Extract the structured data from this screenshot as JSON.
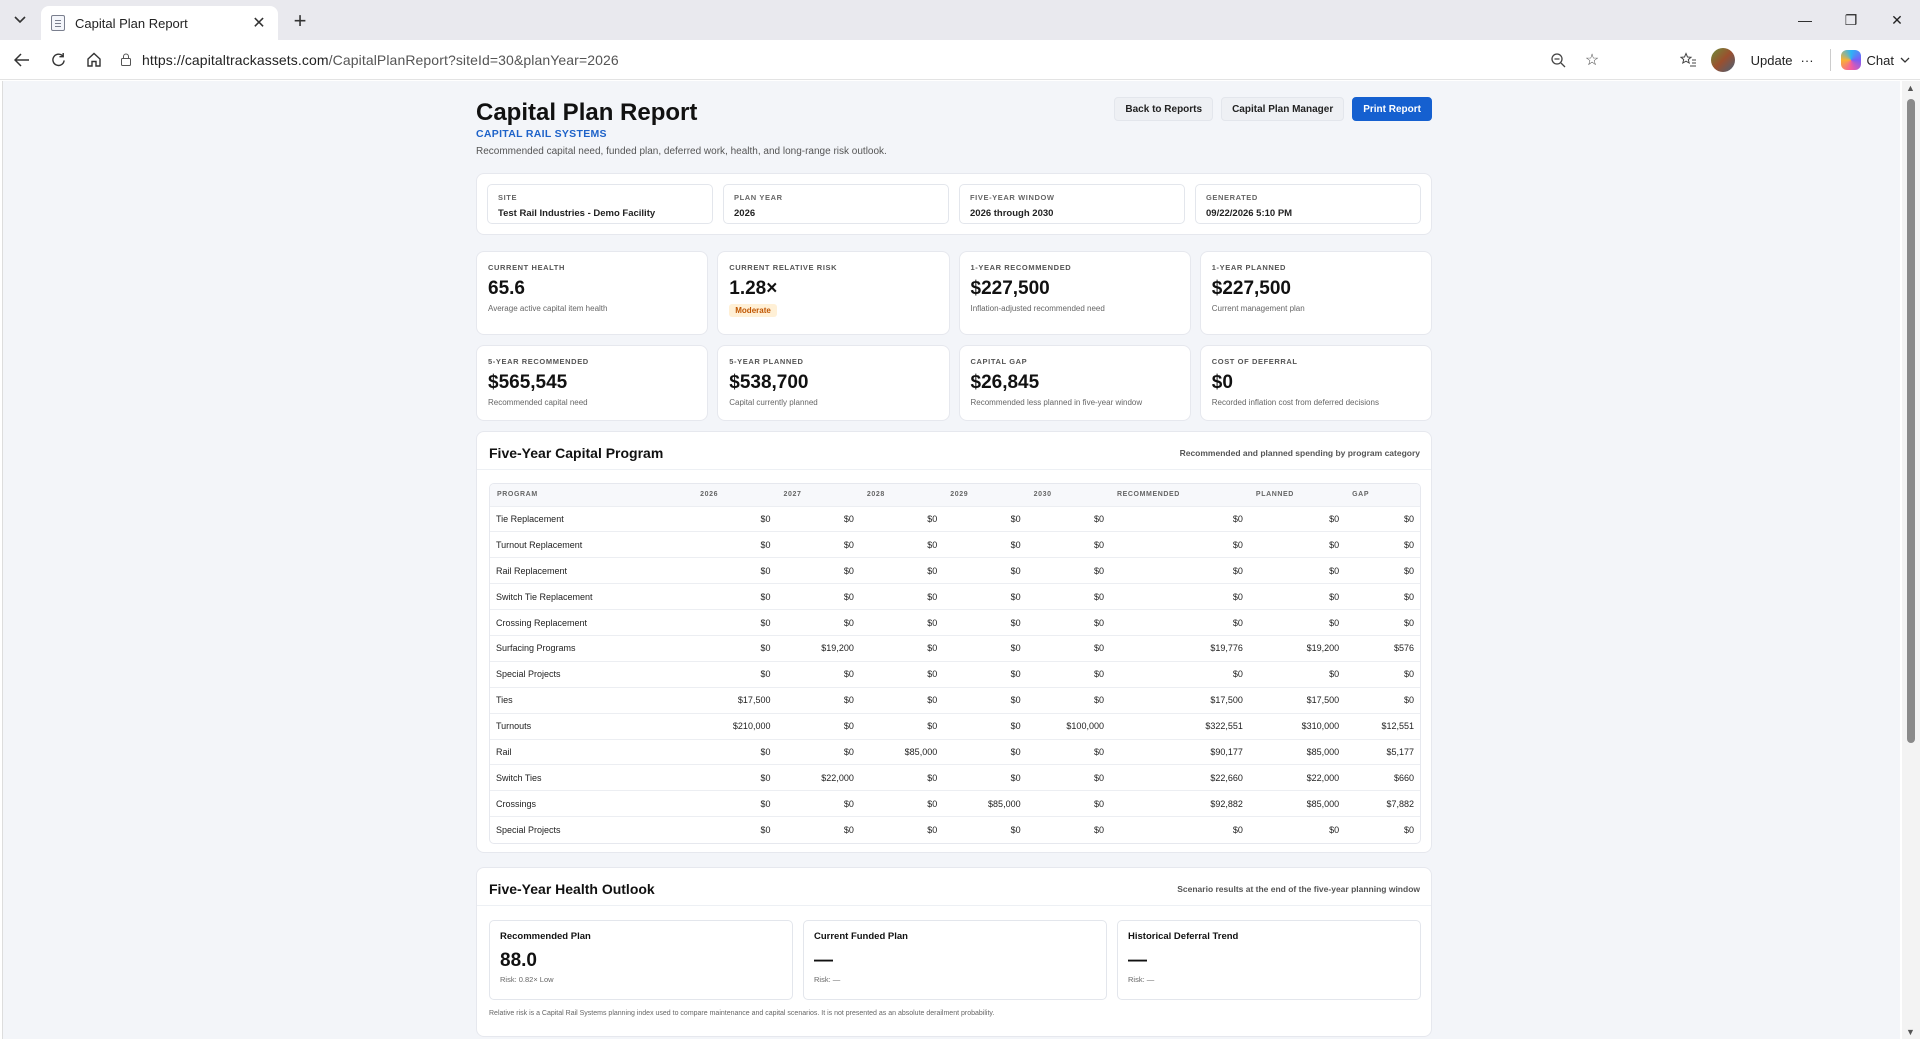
{
  "browser": {
    "tab_title": "Capital Plan Report",
    "url_host": "https://capitaltrackassets.com",
    "url_path": "/CapitalPlanReport?siteId=30&planYear=2026",
    "update_label": "Update",
    "chat_label": "Chat"
  },
  "header": {
    "title": "Capital Plan Report",
    "brand": "CAPITAL RAIL SYSTEMS",
    "subtitle": "Recommended capital need, funded plan, deferred work, health, and long-range risk outlook.",
    "actions": [
      "Back to Reports",
      "Capital Plan Manager",
      "Print Report"
    ]
  },
  "meta": [
    {
      "label": "SITE",
      "value": "Test Rail Industries - Demo Facility"
    },
    {
      "label": "PLAN YEAR",
      "value": "2026"
    },
    {
      "label": "FIVE-YEAR WINDOW",
      "value": "2026 through 2030"
    },
    {
      "label": "GENERATED",
      "value": "09/22/2026 5:10 PM"
    }
  ],
  "kpis": [
    {
      "label": "CURRENT HEALTH",
      "value": "65.6",
      "note": "Average active capital item health"
    },
    {
      "label": "CURRENT RELATIVE RISK",
      "value": "1.28×",
      "badge": "Moderate"
    },
    {
      "label": "1-YEAR RECOMMENDED",
      "value": "$227,500",
      "note": "Inflation-adjusted recommended need"
    },
    {
      "label": "1-YEAR PLANNED",
      "value": "$227,500",
      "note": "Current management plan"
    },
    {
      "label": "5-YEAR RECOMMENDED",
      "value": "$565,545",
      "note": "Recommended capital need"
    },
    {
      "label": "5-YEAR PLANNED",
      "value": "$538,700",
      "note": "Capital currently planned"
    },
    {
      "label": "CAPITAL GAP",
      "value": "$26,845",
      "note": "Recommended less planned in five-year window"
    },
    {
      "label": "COST OF DEFERRAL",
      "value": "$0",
      "note": "Recorded inflation cost from deferred decisions"
    }
  ],
  "program": {
    "title": "Five-Year Capital Program",
    "note": "Recommended and planned spending by program category",
    "columns": [
      "PROGRAM",
      "2026",
      "2027",
      "2028",
      "2029",
      "2030",
      "RECOMMENDED",
      "PLANNED",
      "GAP"
    ],
    "rows": [
      [
        "Tie Replacement",
        "$0",
        "$0",
        "$0",
        "$0",
        "$0",
        "$0",
        "$0",
        "$0"
      ],
      [
        "Turnout Replacement",
        "$0",
        "$0",
        "$0",
        "$0",
        "$0",
        "$0",
        "$0",
        "$0"
      ],
      [
        "Rail Replacement",
        "$0",
        "$0",
        "$0",
        "$0",
        "$0",
        "$0",
        "$0",
        "$0"
      ],
      [
        "Switch Tie Replacement",
        "$0",
        "$0",
        "$0",
        "$0",
        "$0",
        "$0",
        "$0",
        "$0"
      ],
      [
        "Crossing Replacement",
        "$0",
        "$0",
        "$0",
        "$0",
        "$0",
        "$0",
        "$0",
        "$0"
      ],
      [
        "Surfacing Programs",
        "$0",
        "$19,200",
        "$0",
        "$0",
        "$0",
        "$19,776",
        "$19,200",
        "$576"
      ],
      [
        "Special Projects",
        "$0",
        "$0",
        "$0",
        "$0",
        "$0",
        "$0",
        "$0",
        "$0"
      ],
      [
        "Ties",
        "$17,500",
        "$0",
        "$0",
        "$0",
        "$0",
        "$17,500",
        "$17,500",
        "$0"
      ],
      [
        "Turnouts",
        "$210,000",
        "$0",
        "$0",
        "$0",
        "$100,000",
        "$322,551",
        "$310,000",
        "$12,551"
      ],
      [
        "Rail",
        "$0",
        "$0",
        "$85,000",
        "$0",
        "$0",
        "$90,177",
        "$85,000",
        "$5,177"
      ],
      [
        "Switch Ties",
        "$0",
        "$22,000",
        "$0",
        "$0",
        "$0",
        "$22,660",
        "$22,000",
        "$660"
      ],
      [
        "Crossings",
        "$0",
        "$0",
        "$0",
        "$85,000",
        "$0",
        "$92,882",
        "$85,000",
        "$7,882"
      ],
      [
        "Special Projects",
        "$0",
        "$0",
        "$0",
        "$0",
        "$0",
        "$0",
        "$0",
        "$0"
      ]
    ]
  },
  "health": {
    "title": "Five-Year Health Outlook",
    "note": "Scenario results at the end of the five-year planning window",
    "scenarios": [
      {
        "name": "Recommended Plan",
        "score": "88.0",
        "risk": "Risk: 0.82× Low"
      },
      {
        "name": "Current Funded Plan",
        "score": "—",
        "risk": "Risk: —"
      },
      {
        "name": "Historical Deferral Trend",
        "score": "—",
        "risk": "Risk: —"
      }
    ],
    "footnote": "Relative risk is a Capital Rail Systems planning index used to compare maintenance and capital scenarios. It is not presented as an absolute derailment probability."
  }
}
